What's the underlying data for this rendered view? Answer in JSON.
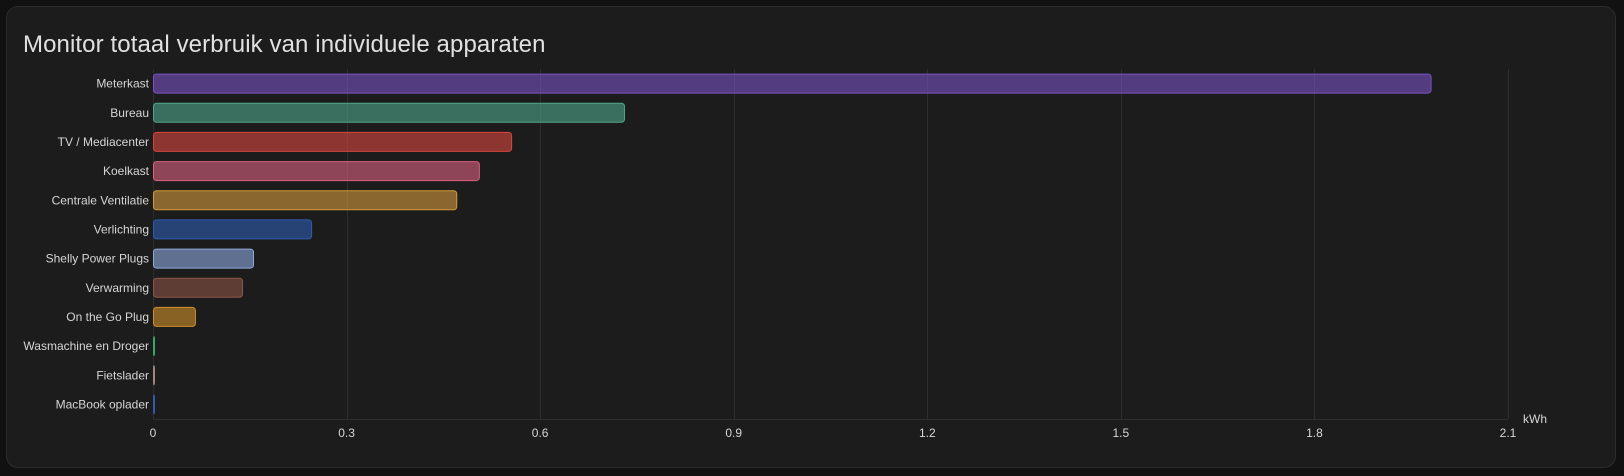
{
  "card": {
    "title": "Monitor totaal verbruik van individuele apparaten"
  },
  "chart_data": {
    "type": "bar",
    "orientation": "horizontal",
    "title": "Monitor totaal verbruik van individuele apparaten",
    "xlabel": "",
    "unit": "kWh",
    "xlim": [
      0,
      2.1
    ],
    "xticks": [
      0,
      0.3,
      0.6,
      0.9,
      1.2,
      1.5,
      1.8,
      2.1
    ],
    "grid": true,
    "legend": "none",
    "categories": [
      "Meterkast",
      "Bureau",
      "TV / Mediacenter",
      "Koelkast",
      "Centrale Ventilatie",
      "Verlichting",
      "Shelly Power Plugs",
      "Verwarming",
      "On the Go Plug",
      "Wasmachine en Droger",
      "Fietslader",
      "MacBook oplader"
    ],
    "values": [
      1.98,
      0.73,
      0.555,
      0.505,
      0.47,
      0.245,
      0.155,
      0.138,
      0.065,
      0.001,
      0.001,
      0.001
    ],
    "colors": [
      "#7a52c5",
      "#4fa58a",
      "#d8463e",
      "#d9617e",
      "#d49a3b",
      "#2f5bb0",
      "#8ea8dd",
      "#8b5545",
      "#d08f2a",
      "#2fae6a",
      "#9a8a82",
      "#2f5bb0"
    ]
  }
}
